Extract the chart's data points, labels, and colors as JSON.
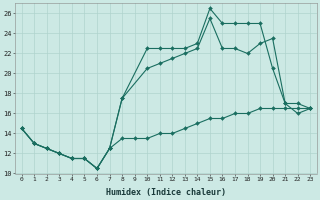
{
  "xlabel": "Humidex (Indice chaleur)",
  "xlim": [
    -0.5,
    23.5
  ],
  "ylim": [
    10,
    27
  ],
  "yticks": [
    10,
    12,
    14,
    16,
    18,
    20,
    22,
    24,
    26
  ],
  "xticks": [
    0,
    1,
    2,
    3,
    4,
    5,
    6,
    7,
    8,
    9,
    10,
    11,
    12,
    13,
    14,
    15,
    16,
    17,
    18,
    19,
    20,
    21,
    22,
    23
  ],
  "bg_color": "#cce9e4",
  "grid_color": "#b0d4ce",
  "line_color": "#1a6e60",
  "line1_x": [
    0,
    1,
    2,
    3,
    4,
    5,
    6,
    7,
    8,
    10,
    11,
    12,
    13,
    14,
    15,
    16,
    17,
    18,
    19,
    20,
    21,
    22,
    23
  ],
  "line1_y": [
    14.5,
    13,
    12.5,
    12,
    11.5,
    11.5,
    10.5,
    12.5,
    17.5,
    22.5,
    22.5,
    22.5,
    22.5,
    23,
    26.5,
    25,
    25,
    25,
    25,
    20.5,
    17,
    16,
    16.5
  ],
  "line2_x": [
    0,
    1,
    2,
    3,
    4,
    5,
    6,
    7,
    8,
    10,
    11,
    12,
    13,
    14,
    15,
    16,
    17,
    18,
    19,
    20,
    21,
    22,
    23
  ],
  "line2_y": [
    14.5,
    13,
    12.5,
    12,
    11.5,
    11.5,
    10.5,
    12.5,
    17.5,
    20.5,
    21,
    21.5,
    22,
    22.5,
    25.5,
    22.5,
    22.5,
    22,
    23,
    23.5,
    17,
    17,
    16.5
  ],
  "line3_x": [
    0,
    1,
    2,
    3,
    4,
    5,
    6,
    7,
    8,
    9,
    10,
    11,
    12,
    13,
    14,
    15,
    16,
    17,
    18,
    19,
    20,
    21,
    22,
    23
  ],
  "line3_y": [
    14.5,
    13,
    12.5,
    12,
    11.5,
    11.5,
    10.5,
    12.5,
    13.5,
    13.5,
    13.5,
    14,
    14,
    14.5,
    15,
    15.5,
    15.5,
    16,
    16,
    16.5,
    16.5,
    16.5,
    16.5,
    16.5
  ]
}
